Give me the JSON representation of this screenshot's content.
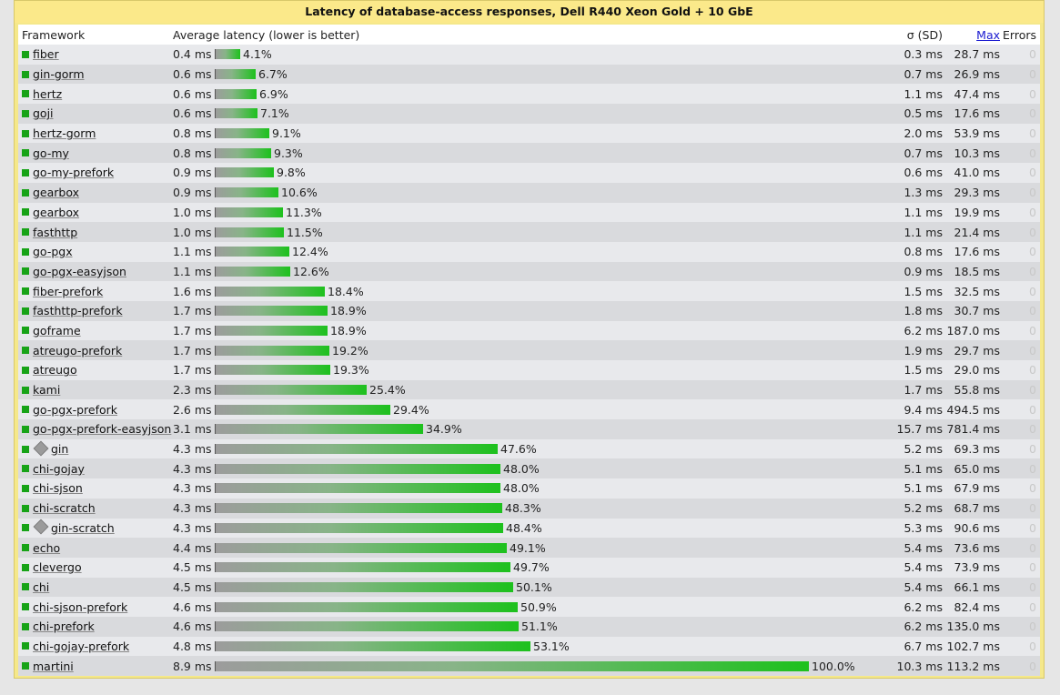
{
  "title": "Latency of database-access responses, Dell R440 Xeon Gold + 10 GbE",
  "columns": {
    "framework": "Framework",
    "average": "Average latency (lower is better)",
    "sd": "σ (SD)",
    "max": "Max",
    "errors": "Errors"
  },
  "colors": {
    "bar_start": "#9c9c9c",
    "bar_end": "#1dc11d",
    "marker": "#17a317",
    "header": "#fbe98a"
  },
  "rows": [
    {
      "name": "fiber",
      "avg": "0.4 ms",
      "pct": 4.1,
      "pct_label": "4.1%",
      "sd": "0.3 ms",
      "max": "28.7 ms",
      "errors": "0"
    },
    {
      "name": "gin-gorm",
      "avg": "0.6 ms",
      "pct": 6.7,
      "pct_label": "6.7%",
      "sd": "0.7 ms",
      "max": "26.9 ms",
      "errors": "0"
    },
    {
      "name": "hertz",
      "avg": "0.6 ms",
      "pct": 6.9,
      "pct_label": "6.9%",
      "sd": "1.1 ms",
      "max": "47.4 ms",
      "errors": "0"
    },
    {
      "name": "goji",
      "avg": "0.6 ms",
      "pct": 7.1,
      "pct_label": "7.1%",
      "sd": "0.5 ms",
      "max": "17.6 ms",
      "errors": "0"
    },
    {
      "name": "hertz-gorm",
      "avg": "0.8 ms",
      "pct": 9.1,
      "pct_label": "9.1%",
      "sd": "2.0 ms",
      "max": "53.9 ms",
      "errors": "0"
    },
    {
      "name": "go-my",
      "avg": "0.8 ms",
      "pct": 9.3,
      "pct_label": "9.3%",
      "sd": "0.7 ms",
      "max": "10.3 ms",
      "errors": "0"
    },
    {
      "name": "go-my-prefork",
      "avg": "0.9 ms",
      "pct": 9.8,
      "pct_label": "9.8%",
      "sd": "0.6 ms",
      "max": "41.0 ms",
      "errors": "0"
    },
    {
      "name": "gearbox",
      "avg": "0.9 ms",
      "pct": 10.6,
      "pct_label": "10.6%",
      "sd": "1.3 ms",
      "max": "29.3 ms",
      "errors": "0"
    },
    {
      "name": "gearbox",
      "avg": "1.0 ms",
      "pct": 11.3,
      "pct_label": "11.3%",
      "sd": "1.1 ms",
      "max": "19.9 ms",
      "errors": "0"
    },
    {
      "name": "fasthttp",
      "avg": "1.0 ms",
      "pct": 11.5,
      "pct_label": "11.5%",
      "sd": "1.1 ms",
      "max": "21.4 ms",
      "errors": "0"
    },
    {
      "name": "go-pgx",
      "avg": "1.1 ms",
      "pct": 12.4,
      "pct_label": "12.4%",
      "sd": "0.8 ms",
      "max": "17.6 ms",
      "errors": "0"
    },
    {
      "name": "go-pgx-easyjson",
      "avg": "1.1 ms",
      "pct": 12.6,
      "pct_label": "12.6%",
      "sd": "0.9 ms",
      "max": "18.5 ms",
      "errors": "0"
    },
    {
      "name": "fiber-prefork",
      "avg": "1.6 ms",
      "pct": 18.4,
      "pct_label": "18.4%",
      "sd": "1.5 ms",
      "max": "32.5 ms",
      "errors": "0"
    },
    {
      "name": "fasthttp-prefork",
      "avg": "1.7 ms",
      "pct": 18.9,
      "pct_label": "18.9%",
      "sd": "1.8 ms",
      "max": "30.7 ms",
      "errors": "0"
    },
    {
      "name": "goframe",
      "avg": "1.7 ms",
      "pct": 18.9,
      "pct_label": "18.9%",
      "sd": "6.2 ms",
      "max": "187.0 ms",
      "errors": "0"
    },
    {
      "name": "atreugo-prefork",
      "avg": "1.7 ms",
      "pct": 19.2,
      "pct_label": "19.2%",
      "sd": "1.9 ms",
      "max": "29.7 ms",
      "errors": "0"
    },
    {
      "name": "atreugo",
      "avg": "1.7 ms",
      "pct": 19.3,
      "pct_label": "19.3%",
      "sd": "1.5 ms",
      "max": "29.0 ms",
      "errors": "0"
    },
    {
      "name": "kami",
      "avg": "2.3 ms",
      "pct": 25.4,
      "pct_label": "25.4%",
      "sd": "1.7 ms",
      "max": "55.8 ms",
      "errors": "0"
    },
    {
      "name": "go-pgx-prefork",
      "avg": "2.6 ms",
      "pct": 29.4,
      "pct_label": "29.4%",
      "sd": "9.4 ms",
      "max": "494.5 ms",
      "errors": "0"
    },
    {
      "name": "go-pgx-prefork-easyjson",
      "avg": "3.1 ms",
      "pct": 34.9,
      "pct_label": "34.9%",
      "sd": "15.7 ms",
      "max": "781.4 ms",
      "errors": "0"
    },
    {
      "name": "gin",
      "icon": true,
      "avg": "4.3 ms",
      "pct": 47.6,
      "pct_label": "47.6%",
      "sd": "5.2 ms",
      "max": "69.3 ms",
      "errors": "0"
    },
    {
      "name": "chi-gojay",
      "avg": "4.3 ms",
      "pct": 48.0,
      "pct_label": "48.0%",
      "sd": "5.1 ms",
      "max": "65.0 ms",
      "errors": "0"
    },
    {
      "name": "chi-sjson",
      "avg": "4.3 ms",
      "pct": 48.0,
      "pct_label": "48.0%",
      "sd": "5.1 ms",
      "max": "67.9 ms",
      "errors": "0"
    },
    {
      "name": "chi-scratch",
      "avg": "4.3 ms",
      "pct": 48.3,
      "pct_label": "48.3%",
      "sd": "5.2 ms",
      "max": "68.7 ms",
      "errors": "0"
    },
    {
      "name": "gin-scratch",
      "icon": true,
      "avg": "4.3 ms",
      "pct": 48.4,
      "pct_label": "48.4%",
      "sd": "5.3 ms",
      "max": "90.6 ms",
      "errors": "0"
    },
    {
      "name": "echo",
      "avg": "4.4 ms",
      "pct": 49.1,
      "pct_label": "49.1%",
      "sd": "5.4 ms",
      "max": "73.6 ms",
      "errors": "0"
    },
    {
      "name": "clevergo",
      "avg": "4.5 ms",
      "pct": 49.7,
      "pct_label": "49.7%",
      "sd": "5.4 ms",
      "max": "73.9 ms",
      "errors": "0"
    },
    {
      "name": "chi",
      "avg": "4.5 ms",
      "pct": 50.1,
      "pct_label": "50.1%",
      "sd": "5.4 ms",
      "max": "66.1 ms",
      "errors": "0"
    },
    {
      "name": "chi-sjson-prefork",
      "avg": "4.6 ms",
      "pct": 50.9,
      "pct_label": "50.9%",
      "sd": "6.2 ms",
      "max": "82.4 ms",
      "errors": "0"
    },
    {
      "name": "chi-prefork",
      "avg": "4.6 ms",
      "pct": 51.1,
      "pct_label": "51.1%",
      "sd": "6.2 ms",
      "max": "135.0 ms",
      "errors": "0"
    },
    {
      "name": "chi-gojay-prefork",
      "avg": "4.8 ms",
      "pct": 53.1,
      "pct_label": "53.1%",
      "sd": "6.7 ms",
      "max": "102.7 ms",
      "errors": "0"
    },
    {
      "name": "martini",
      "avg": "8.9 ms",
      "pct": 100.0,
      "pct_label": "100.0%",
      "sd": "10.3 ms",
      "max": "113.2 ms",
      "errors": "0"
    }
  ]
}
